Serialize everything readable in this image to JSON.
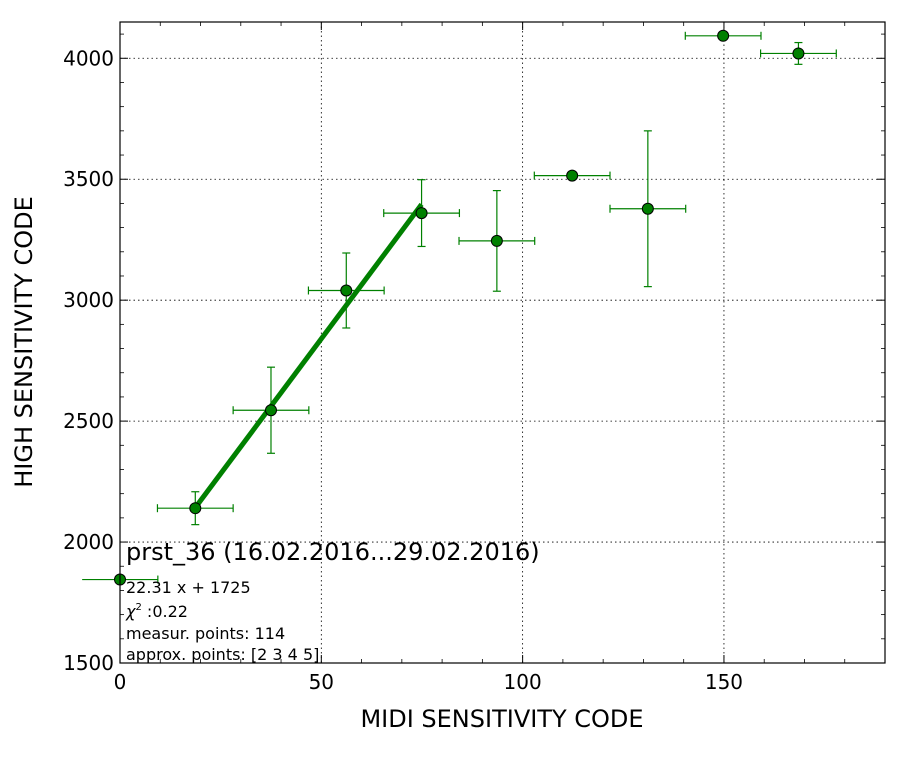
{
  "chart_data": {
    "type": "scatter",
    "title": "prst_36 (16.02.2016...29.02.2016)",
    "xlabel": "MIDI SENSITIVITY CODE",
    "ylabel": "HIGH SENSITIVITY CODE",
    "xlim": [
      0,
      190
    ],
    "ylim": [
      1500,
      4150
    ],
    "xticks": [
      0,
      50,
      100,
      150
    ],
    "yticks": [
      1500,
      2000,
      2500,
      3000,
      3500,
      4000
    ],
    "grid": true,
    "series": [
      {
        "x": [
          0,
          18.7,
          37.5,
          56.2,
          74.9,
          93.6,
          112.3,
          131.1,
          149.8,
          168.5
        ],
        "y": [
          1845,
          2140,
          2545,
          3040,
          3360,
          3245,
          3515,
          3378,
          4093,
          4020
        ],
        "x_err": [
          9.4,
          9.4,
          9.4,
          9.4,
          9.4,
          9.4,
          9.4,
          9.4,
          9.4,
          9.4
        ],
        "y_err": [
          0,
          68,
          178,
          155,
          138,
          208,
          0,
          322,
          0,
          45
        ],
        "color": "#008000"
      }
    ],
    "fit_line": {
      "slope": 22.31,
      "intercept": 1725,
      "x_range": [
        18.7,
        74.9
      ],
      "color": "#008000"
    },
    "annotations": {
      "fit_equation": "22.31 x + 1725",
      "chi2_symbol": "χ",
      "chi2_sup": "2",
      "chi2_value": " :0.22",
      "measur_points": "measur. points: 114",
      "approx_points": "approx. points: [2 3 4 5]"
    }
  }
}
